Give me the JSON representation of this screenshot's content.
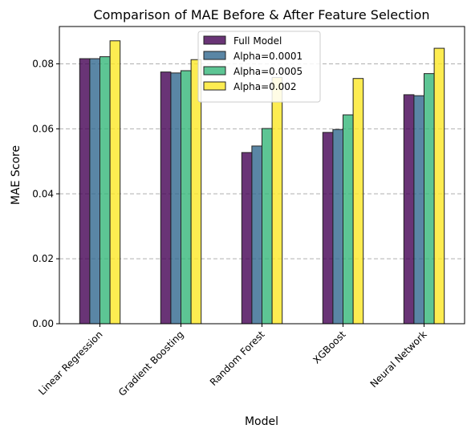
{
  "chart_data": {
    "type": "bar",
    "title": "Comparison of MAE Before & After Feature Selection",
    "xlabel": "Model",
    "ylabel": "MAE Score",
    "categories": [
      "Linear Regression",
      "Gradient Boosting",
      "Random Forest",
      "XGBoost",
      "Neural Network"
    ],
    "ylim": [
      0,
      0.0915
    ],
    "yticks": [
      "0.00",
      "0.02",
      "0.04",
      "0.06",
      "0.08"
    ],
    "ytick_values": [
      0,
      0.02,
      0.04,
      0.06,
      0.08
    ],
    "grid": "y-dashed",
    "legend_position": "top-center",
    "series": [
      {
        "name": "Full Model",
        "color": "#440154",
        "values": [
          0.0816,
          0.0775,
          0.0527,
          0.0589,
          0.0705
        ]
      },
      {
        "name": "Alpha=0.0001",
        "color": "#31688e",
        "values": [
          0.0816,
          0.0772,
          0.0547,
          0.0598,
          0.0702
        ]
      },
      {
        "name": "Alpha=0.0005",
        "color": "#35b779",
        "values": [
          0.0822,
          0.0779,
          0.0601,
          0.0643,
          0.077
        ]
      },
      {
        "name": "Alpha=0.002",
        "color": "#fde725",
        "values": [
          0.0871,
          0.0813,
          0.0758,
          0.0755,
          0.0848
        ]
      }
    ]
  }
}
